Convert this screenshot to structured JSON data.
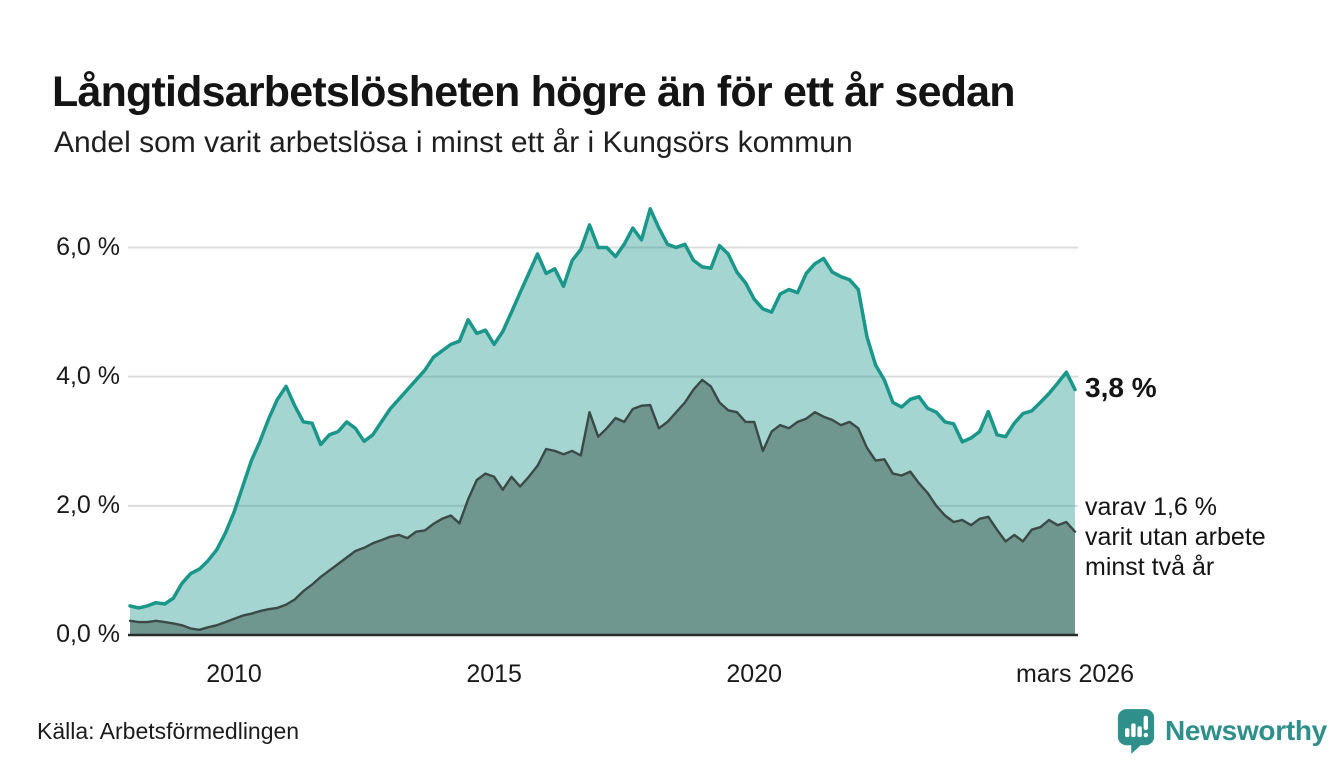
{
  "header": {
    "title": "Långtidsarbetslösheten högre än för ett år sedan",
    "subtitle": "Andel som varit arbetslösa i minst ett år i Kungsörs kommun"
  },
  "chart_data": {
    "type": "area",
    "title": "Långtidsarbetslösheten högre än för ett år sedan",
    "subtitle": "Andel som varit arbetslösa i minst ett år i Kungsörs kommun",
    "unit": "%",
    "grid": true,
    "x_start_year": 2008.0,
    "x_end_year": 2026.1667,
    "x_point_interval_months": 2,
    "ylim": [
      0,
      6.8
    ],
    "x_ticks": [
      {
        "label": "2010",
        "year": 2010
      },
      {
        "label": "2015",
        "year": 2015
      },
      {
        "label": "2020",
        "year": 2020
      },
      {
        "label": "mars 2026",
        "year": 2026.1667
      }
    ],
    "y_ticks": [
      {
        "label": "6,0 %",
        "value": 6.0
      },
      {
        "label": "4,0 %",
        "value": 4.0
      },
      {
        "label": "2,0 %",
        "value": 2.0
      },
      {
        "label": "0,0 %",
        "value": 0.0
      }
    ],
    "series": [
      {
        "name": "arbetslösa minst ett år",
        "line_color": "#1b968a",
        "fill_color": "rgba(27,150,138,0.40)",
        "line_width": 3.5,
        "end_value_label": "3,8 %",
        "values": [
          0.45,
          0.42,
          0.45,
          0.5,
          0.48,
          0.57,
          0.8,
          0.95,
          1.02,
          1.15,
          1.32,
          1.58,
          1.9,
          2.3,
          2.7,
          3.0,
          3.35,
          3.65,
          3.85,
          3.55,
          3.3,
          3.28,
          2.95,
          3.1,
          3.15,
          3.3,
          3.2,
          3.0,
          3.1,
          3.3,
          3.5,
          3.65,
          3.8,
          3.95,
          4.1,
          4.3,
          4.4,
          4.5,
          4.55,
          4.88,
          4.67,
          4.72,
          4.5,
          4.7,
          5.0,
          5.3,
          5.6,
          5.9,
          5.6,
          5.67,
          5.4,
          5.8,
          5.97,
          6.35,
          6.0,
          6.0,
          5.86,
          6.05,
          6.3,
          6.12,
          6.6,
          6.3,
          6.05,
          6.0,
          6.05,
          5.8,
          5.7,
          5.68,
          6.03,
          5.9,
          5.62,
          5.45,
          5.2,
          5.05,
          5.0,
          5.28,
          5.35,
          5.3,
          5.6,
          5.75,
          5.83,
          5.62,
          5.55,
          5.5,
          5.35,
          4.62,
          4.18,
          3.95,
          3.6,
          3.53,
          3.65,
          3.69,
          3.51,
          3.45,
          3.3,
          3.27,
          2.99,
          3.05,
          3.15,
          3.46,
          3.1,
          3.07,
          3.28,
          3.43,
          3.47,
          3.6,
          3.74,
          3.9,
          4.07,
          3.8
        ]
      },
      {
        "name": "varav utan arbete minst två år",
        "line_color": "#3b4a47",
        "fill_color": "#6f968f",
        "line_width": 2.4,
        "end_value_label": "varav 1,6 % varit utan arbete minst två år",
        "values": [
          0.22,
          0.2,
          0.2,
          0.22,
          0.2,
          0.18,
          0.15,
          0.1,
          0.08,
          0.12,
          0.15,
          0.2,
          0.25,
          0.3,
          0.33,
          0.37,
          0.4,
          0.42,
          0.47,
          0.55,
          0.68,
          0.78,
          0.9,
          1.0,
          1.1,
          1.2,
          1.3,
          1.35,
          1.42,
          1.47,
          1.52,
          1.55,
          1.5,
          1.6,
          1.62,
          1.72,
          1.8,
          1.85,
          1.73,
          2.1,
          2.4,
          2.5,
          2.45,
          2.25,
          2.45,
          2.3,
          2.45,
          2.62,
          2.88,
          2.85,
          2.8,
          2.85,
          2.78,
          3.45,
          3.07,
          3.2,
          3.36,
          3.3,
          3.5,
          3.55,
          3.56,
          3.2,
          3.3,
          3.45,
          3.6,
          3.8,
          3.95,
          3.85,
          3.6,
          3.48,
          3.45,
          3.3,
          3.3,
          2.85,
          3.15,
          3.25,
          3.2,
          3.3,
          3.35,
          3.45,
          3.38,
          3.33,
          3.25,
          3.3,
          3.2,
          2.9,
          2.7,
          2.72,
          2.5,
          2.47,
          2.53,
          2.35,
          2.2,
          2.0,
          1.85,
          1.75,
          1.78,
          1.7,
          1.8,
          1.83,
          1.63,
          1.45,
          1.55,
          1.45,
          1.63,
          1.67,
          1.78,
          1.7,
          1.75,
          1.6
        ]
      }
    ],
    "colors": {
      "gridline": "#dcdcdc",
      "baseline": "#2b2b2b"
    }
  },
  "annotations": {
    "current_value": "3,8 %",
    "secondary_note": "varav 1,6 %\nvarit utan arbete\nminst två år"
  },
  "footer": {
    "source": "Källa: Arbetsförmedlingen",
    "brand_name": "Newsworthy",
    "brand_color": "#2f8f8a"
  }
}
